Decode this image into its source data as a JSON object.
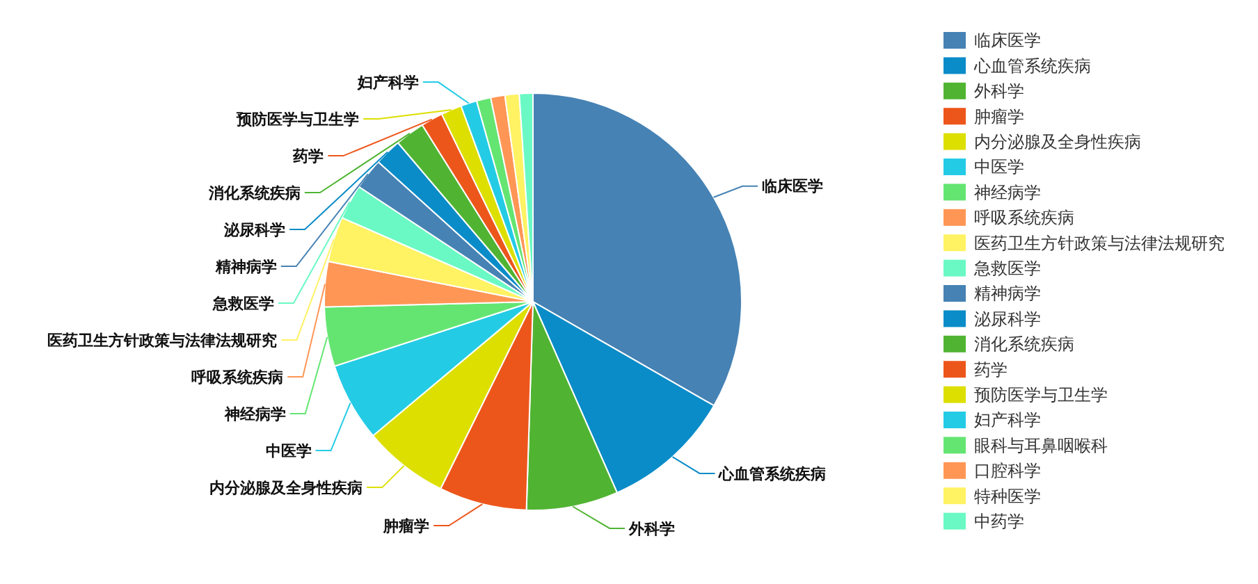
{
  "chart_data": {
    "type": "pie",
    "categories": [
      "临床医学",
      "心血管系统疾病",
      "外科学",
      "肿瘤学",
      "内分泌腺及全身性疾病",
      "中医学",
      "神经病学",
      "呼吸系统疾病",
      "医药卫生方针政策与法律法规研究",
      "急救医学",
      "精神病学",
      "泌尿科学",
      "消化系统疾病",
      "药学",
      "预防医学与卫生学",
      "妇产科学",
      "眼科与耳鼻咽喉科",
      "口腔科学",
      "特种医学",
      "中药学"
    ],
    "values": [
      33.3,
      10.1,
      7.1,
      6.8,
      6.6,
      6.1,
      4.6,
      3.5,
      3.5,
      2.7,
      2.4,
      2.1,
      2.3,
      1.7,
      1.6,
      1.25,
      1.1,
      1.1,
      1.1,
      1.05
    ],
    "colors": [
      "#4682b4",
      "#0a8cc8",
      "#50b432",
      "#ed561b",
      "#dddf00",
      "#24cbe5",
      "#64e572",
      "#ff9655",
      "#fff263",
      "#6af9c4",
      "#4682b4",
      "#0a8cc8",
      "#50b432",
      "#ed561b",
      "#dddf00",
      "#24cbe5",
      "#64e572",
      "#ff9655",
      "#fff263",
      "#6af9c4"
    ],
    "legend": "right"
  }
}
